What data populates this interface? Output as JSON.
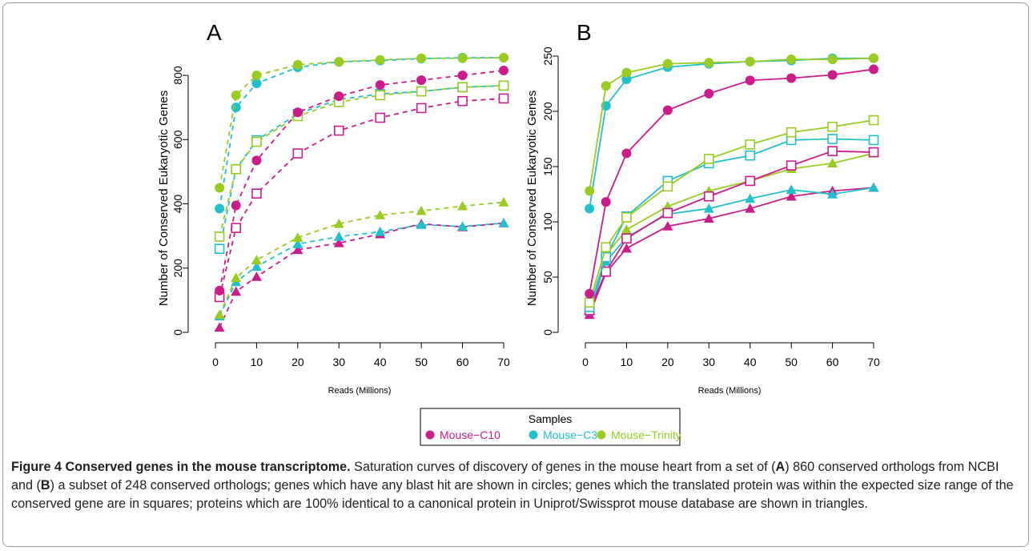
{
  "chart_data": [
    {
      "type": "line",
      "panel_label": "A",
      "xlabel": "Reads (Millions)",
      "ylabel": "Number of Conserved Eukaryotic Genes",
      "xlim": [
        0,
        70
      ],
      "ylim": [
        0,
        860
      ],
      "x_ticks": [
        0,
        10,
        20,
        30,
        40,
        50,
        60,
        70
      ],
      "y_ticks": [
        0,
        200,
        400,
        600,
        800
      ],
      "line_style": "dashed",
      "x": [
        1,
        5,
        10,
        20,
        30,
        40,
        50,
        60,
        70
      ],
      "series": [
        {
          "name": "Mouse-C10",
          "color": "#cc1c8c",
          "marker": "circle",
          "values": [
            130,
            395,
            535,
            685,
            735,
            770,
            785,
            800,
            815
          ]
        },
        {
          "name": "Mouse-C3",
          "color": "#22c0cc",
          "marker": "circle",
          "values": [
            385,
            700,
            775,
            825,
            842,
            846,
            852,
            855,
            855
          ]
        },
        {
          "name": "Mouse-Trinity",
          "color": "#99cc22",
          "marker": "circle",
          "values": [
            450,
            738,
            800,
            833,
            842,
            848,
            853,
            853,
            855
          ]
        },
        {
          "name": "Mouse-C10",
          "color": "#cc1c8c",
          "marker": "square",
          "values": [
            110,
            325,
            432,
            557,
            628,
            668,
            698,
            720,
            728
          ]
        },
        {
          "name": "Mouse-C3",
          "color": "#22c0cc",
          "marker": "square",
          "values": [
            260,
            508,
            598,
            680,
            725,
            742,
            750,
            763,
            768
          ]
        },
        {
          "name": "Mouse-Trinity",
          "color": "#99cc22",
          "marker": "square",
          "values": [
            298,
            508,
            593,
            673,
            717,
            738,
            750,
            763,
            768
          ]
        },
        {
          "name": "Mouse-C10",
          "color": "#cc1c8c",
          "marker": "triangle",
          "values": [
            15,
            127,
            173,
            257,
            278,
            306,
            338,
            328,
            340
          ]
        },
        {
          "name": "Mouse-C3",
          "color": "#22c0cc",
          "marker": "triangle",
          "values": [
            50,
            157,
            205,
            275,
            298,
            313,
            335,
            330,
            340
          ]
        },
        {
          "name": "Mouse-Trinity",
          "color": "#99cc22",
          "marker": "triangle",
          "values": [
            55,
            170,
            225,
            295,
            338,
            365,
            378,
            393,
            405
          ]
        }
      ]
    },
    {
      "type": "line",
      "panel_label": "B",
      "xlabel": "Reads (Millions)",
      "ylabel": "Number of Conserved Eukaryotic Genes",
      "xlim": [
        0,
        70
      ],
      "ylim": [
        0,
        250
      ],
      "x_ticks": [
        0,
        10,
        20,
        30,
        40,
        50,
        60,
        70
      ],
      "y_ticks": [
        0,
        50,
        100,
        150,
        200,
        250
      ],
      "line_style": "solid",
      "x": [
        1,
        5,
        10,
        20,
        30,
        40,
        50,
        60,
        70
      ],
      "series": [
        {
          "name": "Mouse-C10",
          "color": "#cc1c8c",
          "marker": "circle",
          "values": [
            35,
            118,
            162,
            201,
            216,
            228,
            230,
            233,
            238
          ]
        },
        {
          "name": "Mouse-C3",
          "color": "#22c0cc",
          "marker": "circle",
          "values": [
            112,
            205,
            229,
            240,
            243,
            245,
            246,
            248,
            248
          ]
        },
        {
          "name": "Mouse-Trinity",
          "color": "#99cc22",
          "marker": "circle",
          "values": [
            128,
            223,
            235,
            243,
            244,
            245,
            247,
            247,
            248
          ]
        },
        {
          "name": "Mouse-C10",
          "color": "#cc1c8c",
          "marker": "square",
          "values": [
            20,
            55,
            85,
            108,
            123,
            137,
            151,
            164,
            163
          ]
        },
        {
          "name": "Mouse-C3",
          "color": "#22c0cc",
          "marker": "square",
          "values": [
            23,
            68,
            105,
            137,
            153,
            160,
            174,
            175,
            174
          ]
        },
        {
          "name": "Mouse-Trinity",
          "color": "#99cc22",
          "marker": "square",
          "values": [
            27,
            77,
            104,
            132,
            157,
            170,
            181,
            186,
            192
          ]
        },
        {
          "name": "Mouse-C10",
          "color": "#cc1c8c",
          "marker": "triangle",
          "values": [
            16,
            54,
            76,
            96,
            103,
            112,
            123,
            128,
            131
          ]
        },
        {
          "name": "Mouse-C3",
          "color": "#22c0cc",
          "marker": "triangle",
          "values": [
            19,
            64,
            86,
            107,
            112,
            121,
            129,
            125,
            131
          ]
        },
        {
          "name": "Mouse-Trinity",
          "color": "#99cc22",
          "marker": "triangle",
          "values": [
            22,
            70,
            93,
            114,
            128,
            137,
            148,
            153,
            162
          ]
        }
      ]
    }
  ],
  "legend": {
    "title": "Samples",
    "entries": [
      {
        "label": "Mouse−C10",
        "color": "#cc1c8c"
      },
      {
        "label": "Mouse−C3",
        "color": "#22c0cc"
      },
      {
        "label": "Mouse−Trinity",
        "color": "#99cc22"
      }
    ]
  },
  "caption": {
    "title": "Figure 4 Conserved genes in the mouse transcriptome.",
    "part1": " Saturation curves of discovery of genes in the mouse heart from a set of (",
    "label_a": "A",
    "part2": ") 860 conserved orthologs from NCBI and (",
    "label_b": "B",
    "part3": ") a subset of 248 conserved orthologs; genes which have any blast hit are shown in circles; genes which the translated protein was within the expected size range of the conserved gene are in squares; proteins which are 100% identical to a canonical protein in Uniprot/Swissprot mouse database are shown in triangles."
  }
}
